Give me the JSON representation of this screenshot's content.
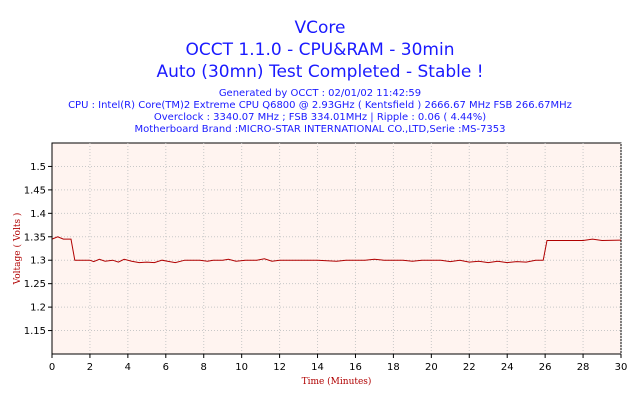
{
  "title_lines": [
    "VCore",
    "OCCT 1.1.0 - CPU&RAM - 30min",
    "Auto (30mn) Test Completed - Stable !"
  ],
  "info_lines": [
    "Generated by OCCT : 02/01/02 11:42:59",
    "CPU : Intel(R) Core(TM)2 Extreme CPU Q6800  @ 2.93GHz ( Kentsfield ) 2666.67 MHz FSB 266.67MHz",
    "Overclock : 3340.07 MHz ; FSB 334.01MHz | Ripple : 0.06 ( 4.44%)",
    "Motherboard Brand :MICRO-STAR INTERNATIONAL CO.,LTD,Serie :MS-7353"
  ],
  "colors": {
    "title": "#1a1aff",
    "plot_background": "#fff4f0",
    "line": "#b00000",
    "axis_label": "#b00000"
  },
  "chart_data": {
    "type": "line",
    "xlabel": "Time (Minutes)",
    "ylabel": "Voltage ( Volts )",
    "xlim": [
      0,
      30
    ],
    "ylim": [
      1.1,
      1.55
    ],
    "x_ticks": [
      "0",
      "2",
      "4",
      "6",
      "8",
      "10",
      "12",
      "14",
      "16",
      "18",
      "20",
      "22",
      "24",
      "26",
      "28",
      "30"
    ],
    "y_ticks": [
      "1.15",
      "1.2",
      "1.25",
      "1.3",
      "1.35",
      "1.4",
      "1.45",
      "1.5"
    ],
    "grid": true,
    "series": [
      {
        "values": [
          [
            0,
            1.345
          ],
          [
            0.3,
            1.35
          ],
          [
            0.6,
            1.345
          ],
          [
            1.0,
            1.345
          ],
          [
            1.2,
            1.3
          ],
          [
            2.0,
            1.3
          ],
          [
            2.2,
            1.297
          ],
          [
            2.5,
            1.302
          ],
          [
            2.8,
            1.298
          ],
          [
            3.2,
            1.3
          ],
          [
            3.5,
            1.296
          ],
          [
            3.8,
            1.302
          ],
          [
            4.2,
            1.298
          ],
          [
            4.6,
            1.295
          ],
          [
            5.0,
            1.296
          ],
          [
            5.4,
            1.295
          ],
          [
            5.8,
            1.3
          ],
          [
            6.2,
            1.297
          ],
          [
            6.5,
            1.295
          ],
          [
            7.0,
            1.3
          ],
          [
            7.8,
            1.3
          ],
          [
            8.2,
            1.298
          ],
          [
            8.5,
            1.3
          ],
          [
            9.0,
            1.3
          ],
          [
            9.3,
            1.302
          ],
          [
            9.7,
            1.298
          ],
          [
            10.2,
            1.3
          ],
          [
            10.8,
            1.3
          ],
          [
            11.2,
            1.303
          ],
          [
            11.6,
            1.298
          ],
          [
            12.0,
            1.3
          ],
          [
            13.0,
            1.3
          ],
          [
            14.0,
            1.3
          ],
          [
            15.0,
            1.298
          ],
          [
            15.5,
            1.3
          ],
          [
            16.5,
            1.3
          ],
          [
            17.0,
            1.302
          ],
          [
            17.5,
            1.3
          ],
          [
            18.5,
            1.3
          ],
          [
            19.0,
            1.298
          ],
          [
            19.5,
            1.3
          ],
          [
            20.5,
            1.3
          ],
          [
            21.0,
            1.297
          ],
          [
            21.5,
            1.3
          ],
          [
            22.0,
            1.296
          ],
          [
            22.5,
            1.298
          ],
          [
            23.0,
            1.295
          ],
          [
            23.5,
            1.298
          ],
          [
            24.0,
            1.295
          ],
          [
            24.5,
            1.297
          ],
          [
            25.0,
            1.296
          ],
          [
            25.5,
            1.3
          ],
          [
            25.9,
            1.3
          ],
          [
            26.1,
            1.342
          ],
          [
            27.0,
            1.342
          ],
          [
            28.0,
            1.342
          ],
          [
            28.5,
            1.345
          ],
          [
            29.0,
            1.342
          ],
          [
            30.0,
            1.343
          ]
        ]
      }
    ]
  }
}
